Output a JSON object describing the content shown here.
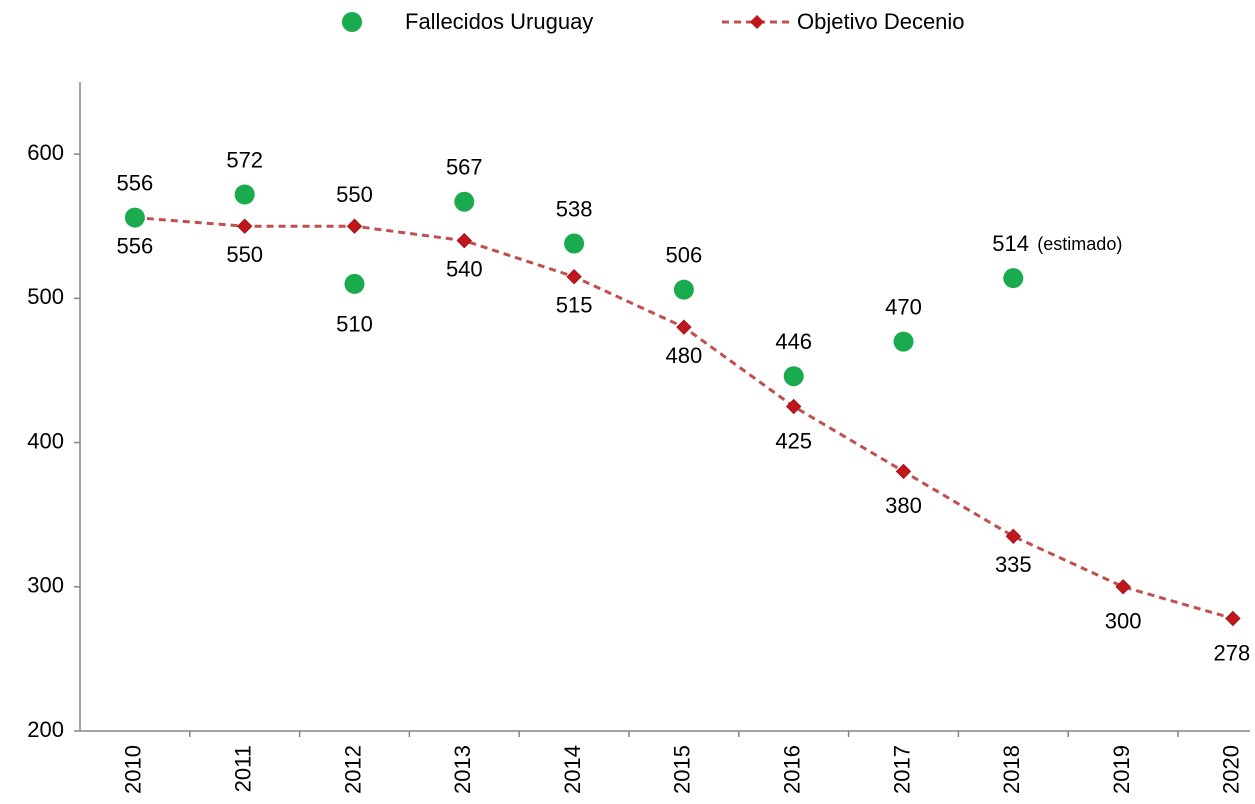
{
  "chart_data": {
    "type": "line",
    "categories": [
      "2010",
      "2011",
      "2012",
      "2013",
      "2014",
      "2015",
      "2016",
      "2017",
      "2018",
      "2019",
      "2020"
    ],
    "series": [
      {
        "name": "Fallecidos Uruguay",
        "color": "#1aab4e",
        "style": "markers",
        "values": [
          556,
          572,
          510,
          567,
          538,
          506,
          446,
          470,
          514,
          null,
          null
        ]
      },
      {
        "name": "Objetivo Decenio",
        "color": "#c0504d",
        "marker_color": "#c0161c",
        "style": "dashed-line-diamonds",
        "values": [
          556,
          550,
          550,
          540,
          515,
          480,
          425,
          380,
          335,
          300,
          278
        ]
      }
    ],
    "annotations": [
      {
        "text": "(estimado)",
        "series": 0,
        "index": 8
      }
    ],
    "ylim": [
      200,
      650
    ],
    "yticks": [
      200,
      300,
      400,
      500,
      600
    ],
    "grid": false,
    "legend": "top"
  }
}
